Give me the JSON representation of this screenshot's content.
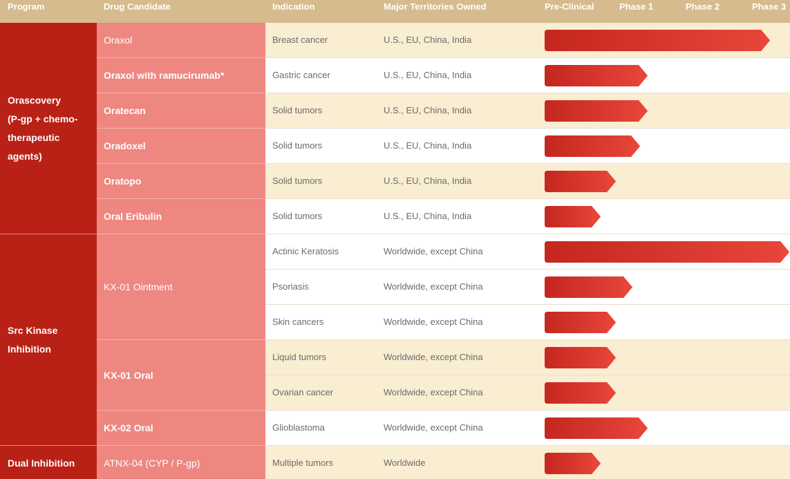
{
  "header": {
    "program": "Program",
    "drug": "Drug Candidate",
    "indication": "Indication",
    "territories": "Major Territories Owned",
    "phases": [
      "Pre-Clinical",
      "Phase 1",
      "Phase 2",
      "Phase 3"
    ]
  },
  "colors": {
    "header_bg": "#d5bb8d",
    "program_bg": "#b92117",
    "drug_bg": "#ee8780",
    "row_alt_bg": "#f9edd2",
    "bar_dark": "#c4271f",
    "bar_light": "#e8463a"
  },
  "programs": [
    {
      "label": "Orascovery (P-gp + chemo-therapeutic agents)",
      "lines": [
        "Orascovery",
        "(P-gp + chemo-",
        "therapeutic",
        "agents)"
      ]
    },
    {
      "label": "Src Kinase Inhibition",
      "lines": [
        "Src Kinase",
        "Inhibition"
      ]
    },
    {
      "label": "Dual Inhibition",
      "lines": [
        "Dual Inhibition"
      ]
    }
  ],
  "drugs": [
    {
      "name": "Oraxol",
      "bold": false
    },
    {
      "name": "Oraxol with ramucirumab*",
      "bold": true
    },
    {
      "name": "Oratecan",
      "bold": true
    },
    {
      "name": "Oradoxel",
      "bold": true
    },
    {
      "name": "Oratopo",
      "bold": true
    },
    {
      "name": "Oral Eribulin",
      "bold": true
    },
    {
      "name": "KX-01 Ointment",
      "bold": false
    },
    {
      "name": "KX-01 Oral",
      "bold": true
    },
    {
      "name": "KX-02 Oral",
      "bold": true
    },
    {
      "name": "ATNX-04 (CYP / P-gp)",
      "bold": false
    }
  ],
  "rows": [
    {
      "indication": "Breast cancer",
      "territories": "U.S., EU, China, India",
      "progress": 0.92
    },
    {
      "indication": "Gastric cancer",
      "territories": "U.S., EU, China, India",
      "progress": 0.42
    },
    {
      "indication": "Solid tumors",
      "territories": "U.S., EU, China, India",
      "progress": 0.42
    },
    {
      "indication": "Solid tumors",
      "territories": "U.S., EU, China, India",
      "progress": 0.39
    },
    {
      "indication": "Solid tumors",
      "territories": "U.S., EU, China, India",
      "progress": 0.29
    },
    {
      "indication": "Solid tumors",
      "territories": "U.S., EU, China, India",
      "progress": 0.23
    },
    {
      "indication": "Actinic Keratosis",
      "territories": "Worldwide, except China",
      "progress": 1.0
    },
    {
      "indication": "Psoriasis",
      "territories": "Worldwide, except China",
      "progress": 0.36
    },
    {
      "indication": "Skin cancers",
      "territories": "Worldwide, except China",
      "progress": 0.29
    },
    {
      "indication": "Liquid tumors",
      "territories": "Worldwide, except China",
      "progress": 0.29
    },
    {
      "indication": "Ovarian cancer",
      "territories": "Worldwide, except China",
      "progress": 0.29
    },
    {
      "indication": "Glioblastoma",
      "territories": "Worldwide, except China",
      "progress": 0.42
    },
    {
      "indication": "Multiple tumors",
      "territories": "Worldwide",
      "progress": 0.23
    }
  ]
}
